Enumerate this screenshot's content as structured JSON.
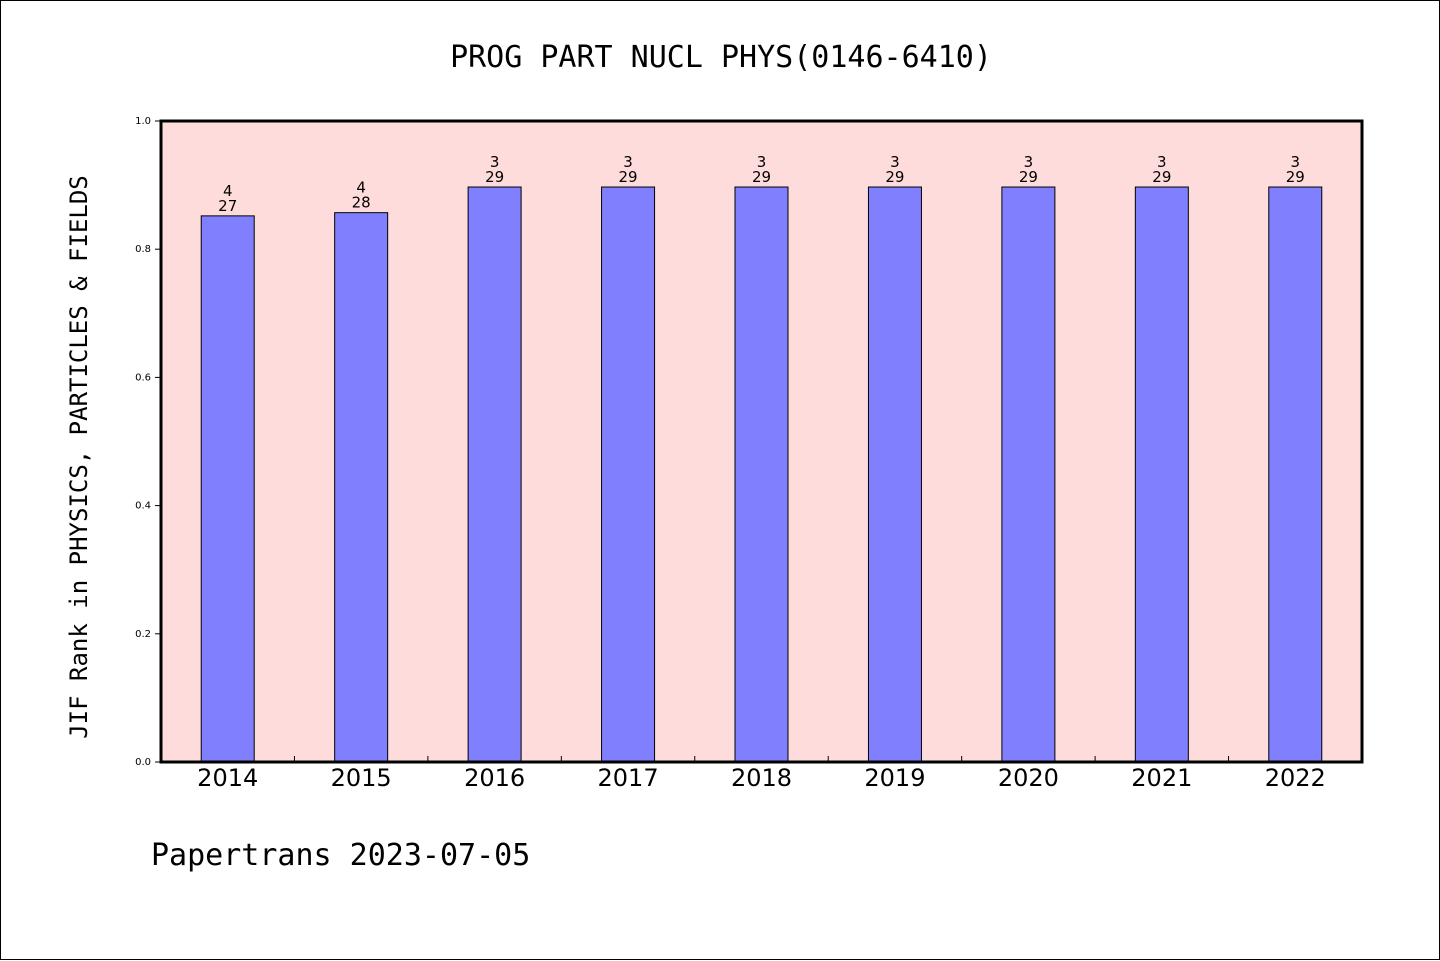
{
  "chart_data": {
    "type": "bar",
    "title": "PROG PART NUCL PHYS(0146-6410)",
    "ylabel": "JIF Rank in PHYSICS, PARTICLES & FIELDS",
    "xlabel": "",
    "ylim": [
      0,
      1.0
    ],
    "yticks": [
      "0.0",
      "0.2",
      "0.4",
      "0.6",
      "0.8",
      "1.0"
    ],
    "categories": [
      "2014",
      "2015",
      "2016",
      "2017",
      "2018",
      "2019",
      "2020",
      "2021",
      "2022"
    ],
    "values": [
      0.852,
      0.857,
      0.897,
      0.897,
      0.897,
      0.897,
      0.897,
      0.897,
      0.897
    ],
    "rank_labels": [
      {
        "rank": "4",
        "total": "27"
      },
      {
        "rank": "4",
        "total": "28"
      },
      {
        "rank": "3",
        "total": "29"
      },
      {
        "rank": "3",
        "total": "29"
      },
      {
        "rank": "3",
        "total": "29"
      },
      {
        "rank": "3",
        "total": "29"
      },
      {
        "rank": "3",
        "total": "29"
      },
      {
        "rank": "3",
        "total": "29"
      },
      {
        "rank": "3",
        "total": "29"
      }
    ],
    "grid": false,
    "colors": {
      "bar": "#8080ff",
      "plot_background": "#ffdcdc",
      "border": "#000000"
    }
  },
  "footer": "Papertrans 2023-07-05"
}
